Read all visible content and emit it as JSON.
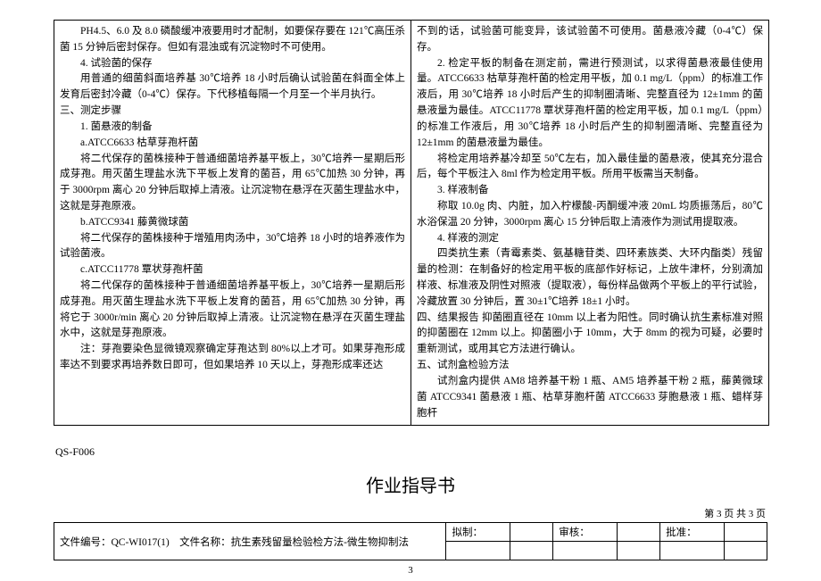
{
  "left_column": [
    {
      "cls": "para",
      "t": "PH4.5、6.0 及 8.0 磷酸缓冲液要用时才配制，如要保存要在 121℃高压杀菌 15 分钟后密封保存。但如有混浊或有沉淀物时不可使用。"
    },
    {
      "cls": "para",
      "t": "4. 试验菌的保存"
    },
    {
      "cls": "para",
      "t": "用普通的细菌斜面培养基 30℃培养 18 小时后确认试验菌在斜面全体上发育后密封冷藏（0-4℃）保存。下代移植每隔一个月至一个半月执行。"
    },
    {
      "cls": "no-indent",
      "t": "三、测定步骤"
    },
    {
      "cls": "para",
      "t": "1. 菌悬液的制备"
    },
    {
      "cls": "para",
      "t": "a.ATCC6633 枯草芽孢杆菌"
    },
    {
      "cls": "para",
      "t": "将二代保存的菌株接种于普通细菌培养基平板上，30℃培养一星期后形成芽孢。用灭菌生理盐水洗下平板上发育的菌苔，用 65℃加热 30 分钟，再于 3000rpm 离心 20 分钟后取掉上清液。让沉淀物在悬浮在灭菌生理盐水中，这就是芽孢原液。"
    },
    {
      "cls": "para",
      "t": "b.ATCC9341 藤黄微球菌"
    },
    {
      "cls": "para",
      "t": "将二代保存的菌株接种于增殖用肉汤中，30℃培养 18 小时的培养液作为试验菌液。"
    },
    {
      "cls": "para",
      "t": "c.ATCC11778 覃状芽孢杆菌"
    },
    {
      "cls": "para",
      "t": "将二代保存的菌株接种于普通细菌培养基平板上，30℃培养一星期后形成芽孢。用灭菌生理盐水洗下平板上发育的菌苔，用 65℃加热 30 分钟，再将它于 3000r/min 离心 20 分钟后取掉上清液。让沉淀物在悬浮在灭菌生理盐水中，这就是芽孢原液。"
    },
    {
      "cls": "para",
      "t": "注：芽孢要染色显微镜观察确定芽孢达到 80%以上才可。如果芽孢形成率达不到要求再培养数日即可，但如果培养 10 天以上，芽孢形成率还达"
    }
  ],
  "right_column": [
    {
      "cls": "no-indent",
      "t": "不到的话，试验菌可能变异，该试验菌不可使用。菌悬液冷藏（0-4℃）保存。"
    },
    {
      "cls": "para",
      "t": "2. 检定平板的制备在测定前，需进行预测试，以求得菌悬液最佳使用量。ATCC6633 枯草芽孢杆菌的检定用平板，加 0.1 mg/L（ppm）的标准工作液后，用 30℃培养 18 小时后产生的抑制圈清晰、完整直径为 12±1mm 的菌悬液量为最佳。ATCC11778 覃状芽孢杆菌的检定用平板，加 0.1 mg/L（ppm）的标准工作液后，用 30℃培养 18 小时后产生的抑制圈清晰、完整直径为 12±1mm 的菌悬液量为最佳。"
    },
    {
      "cls": "para",
      "t": "将检定用培养基冷却至 50℃左右，加入最佳量的菌悬液，使其充分混合后，每个平板注入 8ml 作为检定用平板。所用平板需当天制备。"
    },
    {
      "cls": "para",
      "t": "3. 样液制备"
    },
    {
      "cls": "para",
      "t": "称取 10.0g 肉、内脏，加入柠檬酸-丙酮缓冲液 20mL 均质振荡后，80℃水浴保温 20 分钟，3000rpm 离心 15 分钟后取上清液作为测试用提取液。"
    },
    {
      "cls": "para",
      "t": "4. 样液的测定"
    },
    {
      "cls": "para",
      "t": "四类抗生素（青霉素类、氨基糖苷类、四环素族类、大环内酯类）残留量的检测：在制备好的检定用平板的底部作好标记，上放牛津杯，分别滴加样液、标准液及阴性对照液（提取液），每份样品做两个平板上的平行试验，冷藏放置 30 分钟后，置 30±1℃培养 18±1 小时。"
    },
    {
      "cls": "no-indent",
      "t": "四、结果报告 抑菌圈直径在 10mm 以上者为阳性。同时确认抗生素标准对照的抑菌圈在 12mm 以上。抑菌圈小于 10mm，大于 8mm 的视为可疑，必要时重新测试，或用其它方法进行确认。"
    },
    {
      "cls": "no-indent",
      "t": "五、试剂盒检验方法"
    },
    {
      "cls": "para",
      "t": "试剂盒内提供 AM8 培养基干粉 1 瓶、AM5 培养基干粉 2 瓶，藤黄微球菌 ATCC9341 菌悬液 1 瓶、枯草芽胞杆菌 ATCC6633 芽胞悬液 1 瓶、蜡样芽胞杆"
    }
  ],
  "footer": {
    "qs": "QS-F006",
    "title": "作业指导书",
    "page_label": "第 3 页  共 3 页",
    "doc_no_label": "文件编号：",
    "doc_no": "QC-WI017(1)",
    "doc_name_label": "文件名称：",
    "doc_name": "抗生素残留量检验检方法-微生物抑制法",
    "drafted": "拟制：",
    "reviewed": "审核：",
    "approved": "批准："
  },
  "page_number": "3"
}
